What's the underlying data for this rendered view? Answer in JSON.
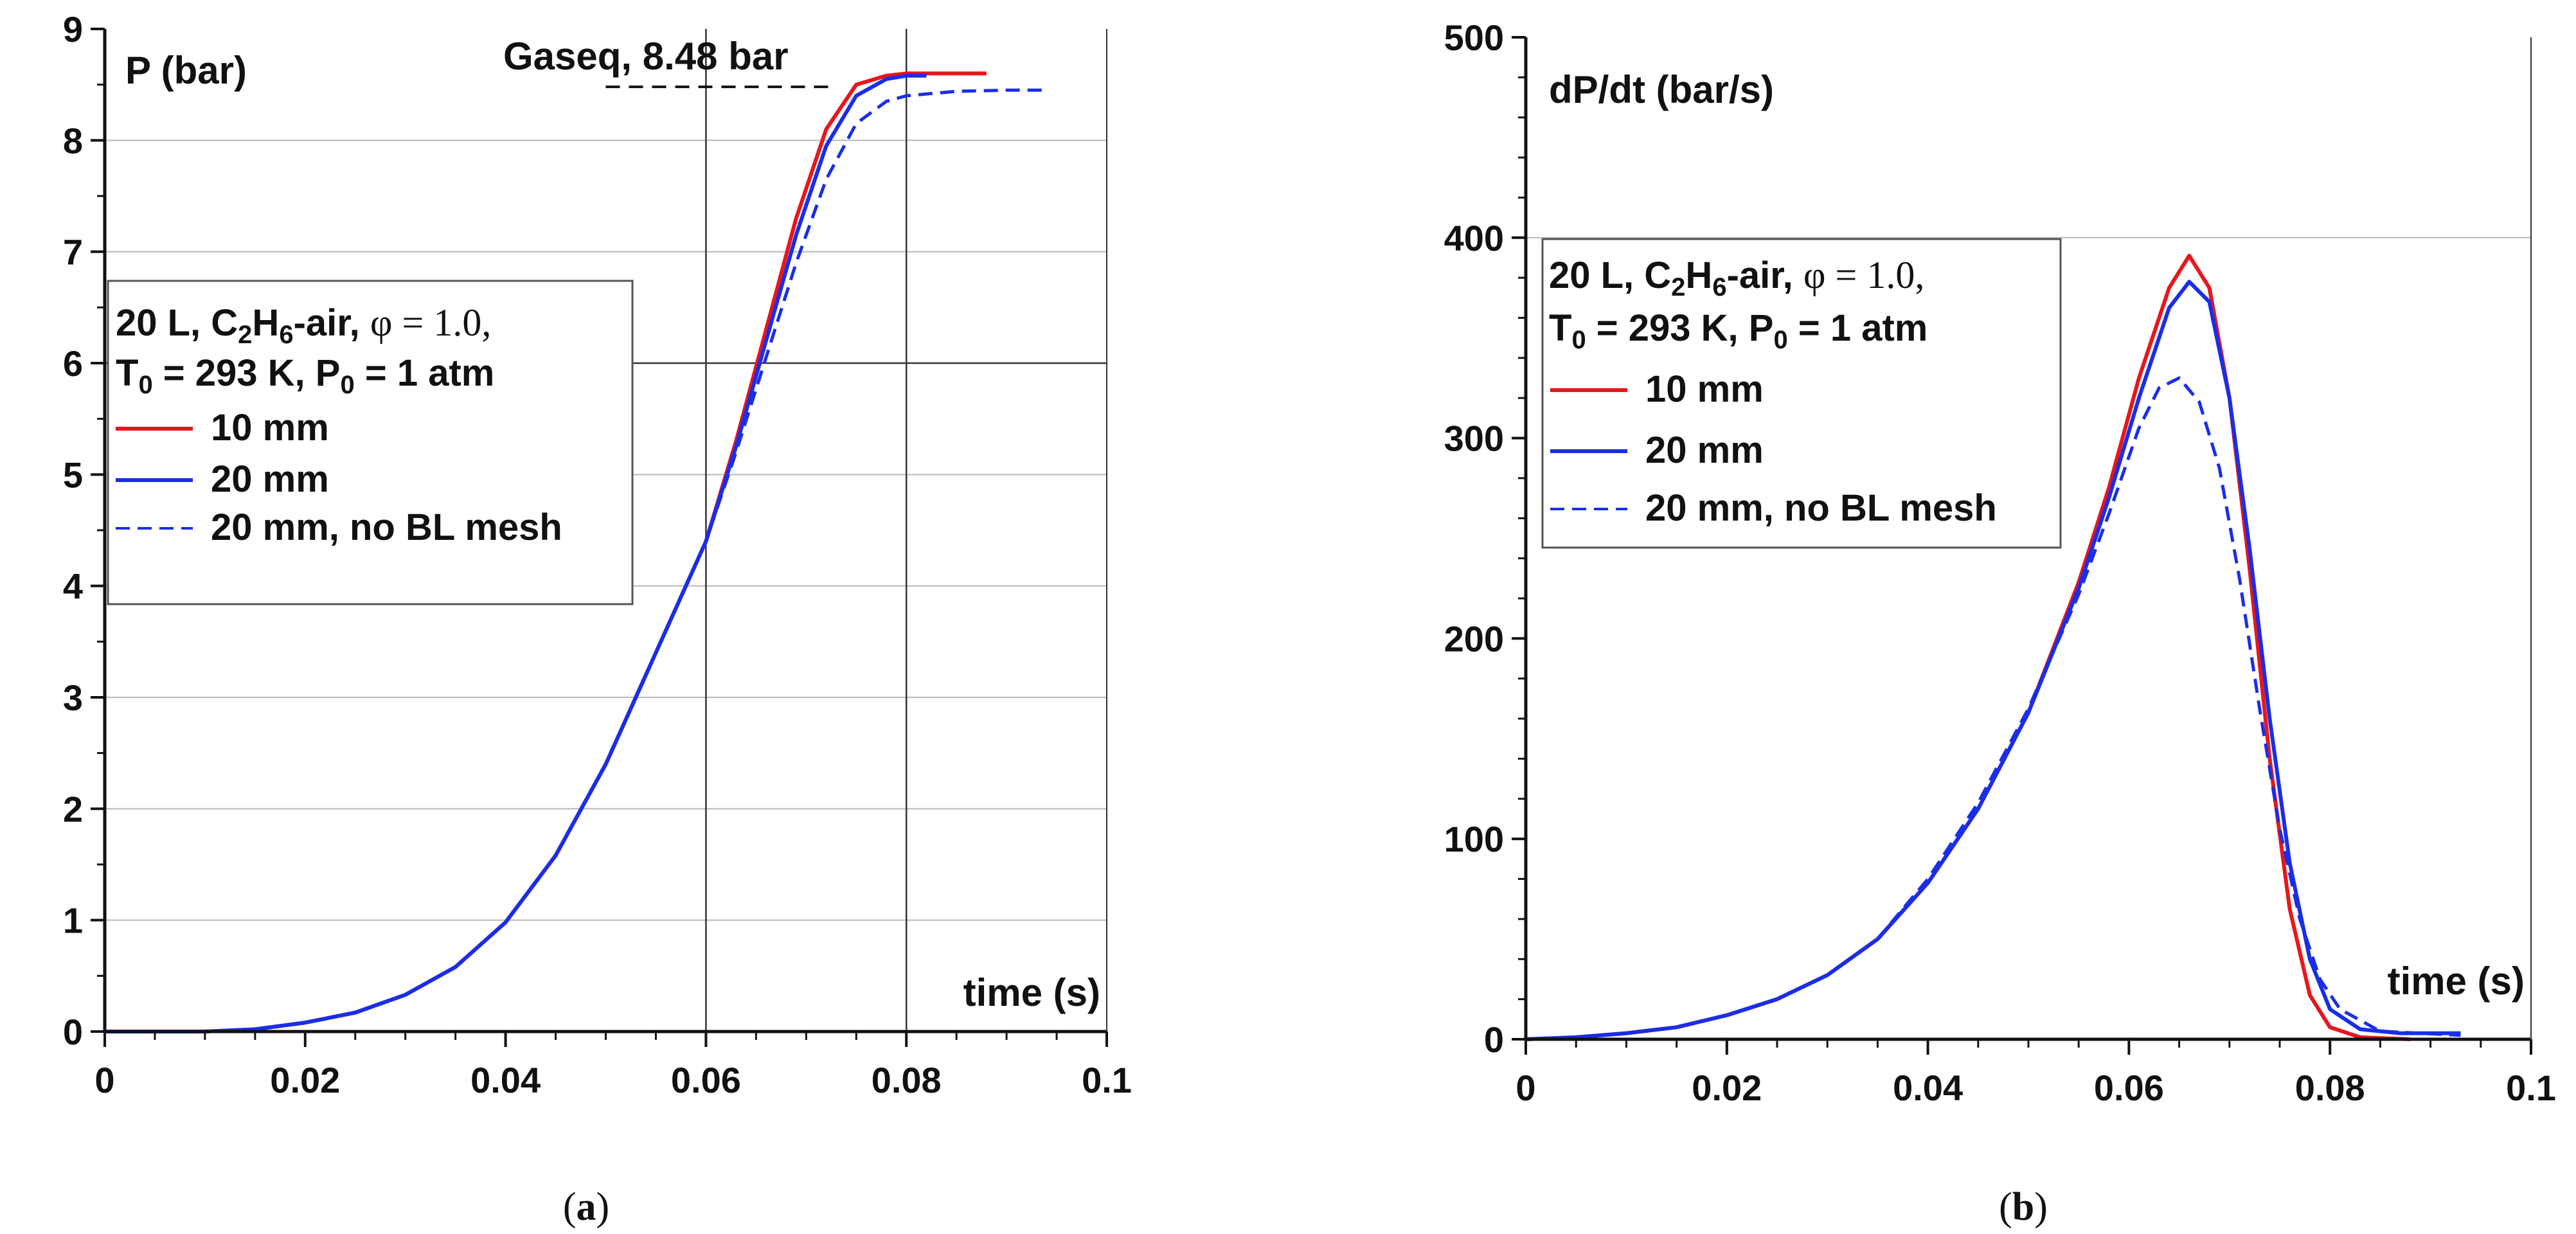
{
  "chart_data": [
    {
      "type": "line",
      "panel": "a",
      "caption_letter": "a",
      "title": "P (bar)",
      "xlabel": "time (s)",
      "ylabel": "P (bar)",
      "xlim": [
        0,
        0.1
      ],
      "ylim": [
        0,
        9
      ],
      "x_ticks": [
        "0",
        "0.02",
        "0.04",
        "0.06",
        "0.08",
        "0.1"
      ],
      "y_ticks": [
        "0",
        "1",
        "2",
        "3",
        "4",
        "5",
        "6",
        "7",
        "8",
        "9"
      ],
      "annotation": {
        "text": "Gaseq, 8.48 bar",
        "value": 8.48,
        "x_from": 0.05,
        "x_to": 0.073
      },
      "legend": {
        "line1": {
          "prefix": "20 L, C",
          "sub1": "2",
          "mid": "H",
          "sub2": "6",
          "suffix": "-air, ",
          "phi": "φ = 1.0,"
        },
        "line2": {
          "p1": "T",
          "s1": "0",
          "p2": " = 293 K, P",
          "s2": "0",
          "p3": " = 1 atm"
        }
      },
      "series": [
        {
          "name": "10 mm",
          "color": "#e8161b",
          "dash": false,
          "x": [
            0,
            0.01,
            0.015,
            0.02,
            0.025,
            0.03,
            0.035,
            0.04,
            0.045,
            0.05,
            0.055,
            0.06,
            0.063,
            0.066,
            0.069,
            0.072,
            0.075,
            0.078,
            0.08,
            0.088
          ],
          "y": [
            0,
            0,
            0.02,
            0.08,
            0.17,
            0.33,
            0.58,
            0.98,
            1.58,
            2.4,
            3.4,
            4.4,
            5.3,
            6.3,
            7.3,
            8.1,
            8.5,
            8.58,
            8.6,
            8.6
          ]
        },
        {
          "name": "20 mm",
          "color": "#1a2ee8",
          "dash": false,
          "x": [
            0,
            0.01,
            0.015,
            0.02,
            0.025,
            0.03,
            0.035,
            0.04,
            0.045,
            0.05,
            0.055,
            0.06,
            0.063,
            0.066,
            0.069,
            0.072,
            0.075,
            0.078,
            0.08,
            0.082
          ],
          "y": [
            0,
            0,
            0.02,
            0.08,
            0.17,
            0.33,
            0.58,
            0.98,
            1.58,
            2.4,
            3.4,
            4.4,
            5.25,
            6.2,
            7.15,
            7.95,
            8.4,
            8.55,
            8.58,
            8.58
          ]
        },
        {
          "name": "20 mm, no BL mesh",
          "color": "#1a2ee8",
          "dash": true,
          "x": [
            0,
            0.01,
            0.015,
            0.02,
            0.025,
            0.03,
            0.035,
            0.04,
            0.045,
            0.05,
            0.055,
            0.06,
            0.063,
            0.066,
            0.069,
            0.072,
            0.075,
            0.078,
            0.08,
            0.085,
            0.09,
            0.094
          ],
          "y": [
            0,
            0,
            0.02,
            0.08,
            0.17,
            0.33,
            0.58,
            0.98,
            1.58,
            2.4,
            3.4,
            4.4,
            5.2,
            6.05,
            6.9,
            7.65,
            8.15,
            8.35,
            8.4,
            8.44,
            8.45,
            8.45
          ]
        }
      ]
    },
    {
      "type": "line",
      "panel": "b",
      "caption_letter": "b",
      "title": "dP/dt (bar/s)",
      "xlabel": "time (s)",
      "ylabel": "dP/dt (bar/s)",
      "xlim": [
        0,
        0.1
      ],
      "ylim": [
        0,
        500
      ],
      "x_ticks": [
        "0",
        "0.02",
        "0.04",
        "0.06",
        "0.08",
        "0.1"
      ],
      "y_ticks": [
        "0",
        "100",
        "200",
        "300",
        "400",
        "500"
      ],
      "legend": {
        "line1": {
          "prefix": "20 L, C",
          "sub1": "2",
          "mid": "H",
          "sub2": "6",
          "suffix": "-air, ",
          "phi": "φ = 1.0,"
        },
        "line2": {
          "p1": "T",
          "s1": "0",
          "p2": " = 293 K, P",
          "s2": "0",
          "p3": " = 1 atm"
        }
      },
      "series": [
        {
          "name": "10 mm",
          "color": "#e8161b",
          "dash": false,
          "x": [
            0,
            0.005,
            0.01,
            0.015,
            0.02,
            0.025,
            0.03,
            0.035,
            0.04,
            0.045,
            0.05,
            0.055,
            0.058,
            0.061,
            0.064,
            0.066,
            0.068,
            0.07,
            0.072,
            0.074,
            0.076,
            0.078,
            0.08,
            0.083,
            0.088
          ],
          "y": [
            0,
            1,
            3,
            6,
            12,
            20,
            32,
            50,
            78,
            115,
            163,
            228,
            275,
            330,
            375,
            391,
            375,
            320,
            235,
            140,
            65,
            22,
            6,
            1,
            0
          ]
        },
        {
          "name": "20 mm",
          "color": "#1a2ee8",
          "dash": false,
          "x": [
            0,
            0.005,
            0.01,
            0.015,
            0.02,
            0.025,
            0.03,
            0.035,
            0.04,
            0.045,
            0.05,
            0.055,
            0.058,
            0.061,
            0.064,
            0.066,
            0.068,
            0.07,
            0.072,
            0.074,
            0.076,
            0.078,
            0.08,
            0.083,
            0.087,
            0.093
          ],
          "y": [
            0,
            1,
            3,
            6,
            12,
            20,
            32,
            50,
            78,
            115,
            163,
            225,
            270,
            320,
            365,
            378,
            368,
            320,
            245,
            160,
            88,
            40,
            15,
            5,
            3,
            3
          ]
        },
        {
          "name": "20 mm, no BL mesh",
          "color": "#1a2ee8",
          "dash": true,
          "x": [
            0,
            0.005,
            0.01,
            0.015,
            0.02,
            0.025,
            0.03,
            0.035,
            0.04,
            0.045,
            0.05,
            0.055,
            0.058,
            0.061,
            0.063,
            0.065,
            0.067,
            0.069,
            0.071,
            0.073,
            0.075,
            0.077,
            0.079,
            0.081,
            0.085,
            0.093
          ],
          "y": [
            0,
            1,
            3,
            6,
            12,
            20,
            32,
            50,
            80,
            118,
            165,
            222,
            262,
            305,
            325,
            330,
            318,
            285,
            230,
            165,
            105,
            60,
            30,
            15,
            4,
            2
          ]
        }
      ]
    }
  ]
}
